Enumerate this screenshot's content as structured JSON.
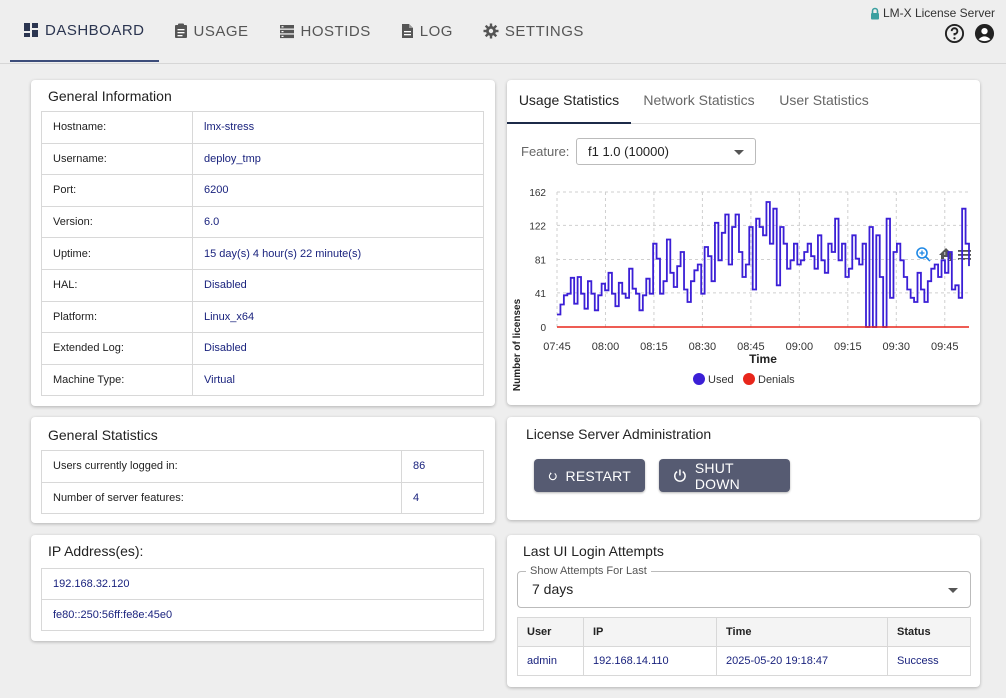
{
  "nav": {
    "items": [
      {
        "label": "DASHBOARD",
        "icon": "dashboard-icon"
      },
      {
        "label": "USAGE",
        "icon": "clipboard-icon"
      },
      {
        "label": "HOSTIDS",
        "icon": "storage-icon"
      },
      {
        "label": "LOG",
        "icon": "document-icon"
      },
      {
        "label": "SETTINGS",
        "icon": "gear-icon"
      }
    ],
    "active": "DASHBOARD"
  },
  "brand": {
    "title": "LM-X License Server",
    "icon": "lock-icon"
  },
  "header_icons": [
    "help-icon",
    "account-icon"
  ],
  "general_info": {
    "title": "General Information",
    "rows": [
      {
        "label": "Hostname:",
        "value": "lmx-stress"
      },
      {
        "label": "Username:",
        "value": "deploy_tmp"
      },
      {
        "label": "Port:",
        "value": "6200"
      },
      {
        "label": "Version:",
        "value": "6.0"
      },
      {
        "label": "Uptime:",
        "value": "15 day(s) 4 hour(s) 22 minute(s)"
      },
      {
        "label": "HAL:",
        "value": "Disabled"
      },
      {
        "label": "Platform:",
        "value": "Linux_x64"
      },
      {
        "label": "Extended Log:",
        "value": "Disabled"
      },
      {
        "label": "Machine Type:",
        "value": "Virtual"
      }
    ]
  },
  "general_stats": {
    "title": "General Statistics",
    "rows": [
      {
        "label": "Users currently logged in:",
        "value": "86"
      },
      {
        "label": "Number of server features:",
        "value": "4"
      }
    ]
  },
  "ip_addresses": {
    "title": "IP Address(es):",
    "items": [
      "192.168.32.120",
      "fe80::250:56ff:fe8e:45e0"
    ]
  },
  "stats_tabs": {
    "tabs": [
      "Usage Statistics",
      "Network Statistics",
      "User Statistics"
    ],
    "active": "Usage Statistics"
  },
  "feature": {
    "label": "Feature:",
    "selected": "f1 1.0 (10000)"
  },
  "chart_toolbar": [
    "zoom-in-icon",
    "home-icon",
    "menu-icon"
  ],
  "colors": {
    "used": "#3b1fd6",
    "denials": "#e8261b",
    "button": "#565b72"
  },
  "chart_data": {
    "type": "line",
    "xlabel": "Time",
    "ylabel": "Number of licenses",
    "ylim": [
      0,
      162
    ],
    "yticks": [
      0,
      41,
      81,
      122,
      162
    ],
    "xticks": [
      "07:45",
      "08:00",
      "08:15",
      "08:30",
      "08:45",
      "09:00",
      "09:15",
      "09:30",
      "09:45"
    ],
    "legend": [
      "Used",
      "Denials"
    ],
    "series": [
      {
        "name": "Used",
        "step": true,
        "points": [
          [
            0,
            15
          ],
          [
            1,
            27
          ],
          [
            2,
            38
          ],
          [
            3,
            40
          ],
          [
            4,
            59
          ],
          [
            5,
            28
          ],
          [
            6,
            60
          ],
          [
            7,
            40
          ],
          [
            8,
            22
          ],
          [
            9,
            55
          ],
          [
            10,
            40
          ],
          [
            11,
            20
          ],
          [
            12,
            38
          ],
          [
            13,
            52
          ],
          [
            14,
            44
          ],
          [
            15,
            65
          ],
          [
            16,
            40
          ],
          [
            17,
            25
          ],
          [
            18,
            53
          ],
          [
            19,
            40
          ],
          [
            20,
            35
          ],
          [
            21,
            70
          ],
          [
            22,
            46
          ],
          [
            23,
            40
          ],
          [
            24,
            20
          ],
          [
            25,
            38
          ],
          [
            26,
            58
          ],
          [
            27,
            40
          ],
          [
            28,
            100
          ],
          [
            29,
            82
          ],
          [
            30,
            40
          ],
          [
            31,
            55
          ],
          [
            32,
            105
          ],
          [
            33,
            65
          ],
          [
            34,
            48
          ],
          [
            35,
            73
          ],
          [
            36,
            90
          ],
          [
            37,
            45
          ],
          [
            38,
            30
          ],
          [
            39,
            55
          ],
          [
            40,
            68
          ],
          [
            41,
            75
          ],
          [
            42,
            40
          ],
          [
            43,
            96
          ],
          [
            44,
            85
          ],
          [
            45,
            55
          ],
          [
            46,
            125
          ],
          [
            47,
            80
          ],
          [
            48,
            113
          ],
          [
            49,
            135
          ],
          [
            50,
            75
          ],
          [
            51,
            120
          ],
          [
            52,
            135
          ],
          [
            53,
            90
          ],
          [
            54,
            60
          ],
          [
            55,
            75
          ],
          [
            56,
            120
          ],
          [
            57,
            45
          ],
          [
            58,
            130
          ],
          [
            59,
            120
          ],
          [
            60,
            110
          ],
          [
            61,
            150
          ],
          [
            62,
            100
          ],
          [
            63,
            142
          ],
          [
            64,
            50
          ],
          [
            65,
            120
          ],
          [
            66,
            100
          ],
          [
            67,
            70
          ],
          [
            68,
            80
          ],
          [
            69,
            100
          ],
          [
            70,
            75
          ],
          [
            71,
            80
          ],
          [
            72,
            90
          ],
          [
            73,
            100
          ],
          [
            74,
            85
          ],
          [
            75,
            70
          ],
          [
            76,
            110
          ],
          [
            77,
            80
          ],
          [
            78,
            65
          ],
          [
            79,
            100
          ],
          [
            80,
            90
          ],
          [
            81,
            130
          ],
          [
            82,
            80
          ],
          [
            83,
            100
          ],
          [
            84,
            60
          ],
          [
            85,
            70
          ],
          [
            86,
            110
          ],
          [
            87,
            82
          ],
          [
            88,
            75
          ],
          [
            89,
            100
          ],
          [
            90,
            0
          ],
          [
            91,
            120
          ],
          [
            92,
            0
          ],
          [
            93,
            110
          ],
          [
            94,
            60
          ],
          [
            95,
            0
          ],
          [
            96,
            130
          ],
          [
            97,
            35
          ],
          [
            98,
            90
          ],
          [
            99,
            100
          ],
          [
            100,
            80
          ],
          [
            101,
            60
          ],
          [
            102,
            45
          ],
          [
            103,
            35
          ],
          [
            104,
            30
          ],
          [
            105,
            65
          ],
          [
            106,
            45
          ],
          [
            107,
            30
          ],
          [
            108,
            55
          ],
          [
            109,
            70
          ],
          [
            110,
            75
          ],
          [
            111,
            60
          ],
          [
            112,
            80
          ],
          [
            113,
            65
          ],
          [
            114,
            90
          ],
          [
            115,
            45
          ],
          [
            116,
            50
          ],
          [
            117,
            35
          ],
          [
            118,
            142
          ],
          [
            119,
            100
          ],
          [
            120,
            73
          ]
        ]
      },
      {
        "name": "Denials",
        "values": "all 0"
      }
    ]
  },
  "admin": {
    "title": "License Server Administration",
    "restart_label": "RESTART",
    "shutdown_label": "SHUT DOWN"
  },
  "login_attempts": {
    "title": "Last UI Login Attempts",
    "filter_label": "Show Attempts For Last",
    "filter_value": "7 days",
    "columns": [
      "User",
      "IP",
      "Time",
      "Status"
    ],
    "rows": [
      {
        "user": "admin",
        "ip": "192.168.14.110",
        "time": "2025-05-20 19:18:47",
        "status": "Success"
      }
    ]
  }
}
